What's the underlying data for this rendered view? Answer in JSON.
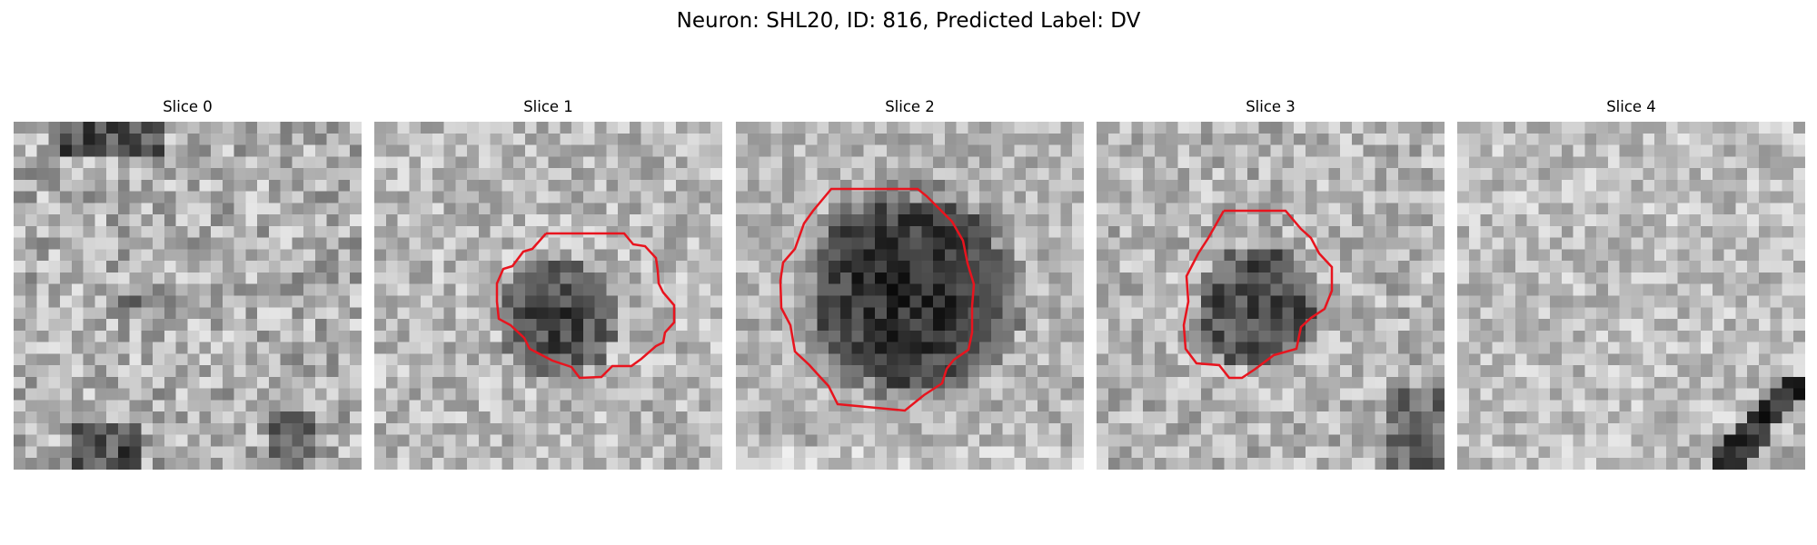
{
  "figure": {
    "title": "Neuron: SHL20, ID: 816, Predicted Label: DV"
  },
  "panels": [
    {
      "title": "Slice 0",
      "has_roi_contour": false
    },
    {
      "title": "Slice 1",
      "has_roi_contour": true
    },
    {
      "title": "Slice 2",
      "has_roi_contour": true
    },
    {
      "title": "Slice 3",
      "has_roi_contour": true
    },
    {
      "title": "Slice 4",
      "has_roi_contour": false
    }
  ],
  "colors": {
    "background": "#ffffff",
    "roi_contour": "#e8141e",
    "colormap": "gray"
  }
}
